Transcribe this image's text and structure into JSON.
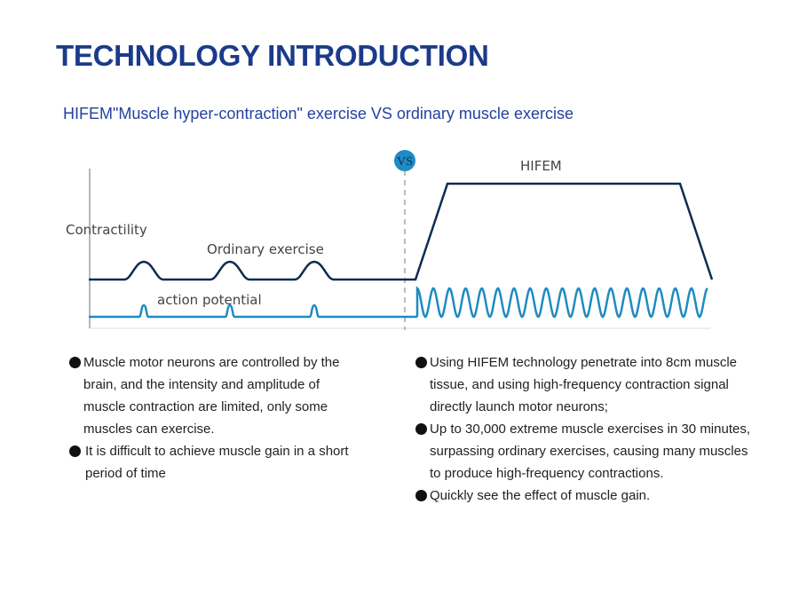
{
  "title": "TECHNOLOGY INTRODUCTION",
  "subtitle": "HIFEM\"Muscle hyper-contraction\" exercise VS ordinary muscle exercise",
  "diagram": {
    "vs_badge": "VS",
    "hifem_label": "HIFEM",
    "contractility_label": "Contractility",
    "ordinary_label": "Ordinary exercise",
    "action_potential_label": "action potential",
    "colors": {
      "contraction": "#0f2b4f",
      "signal": "#1e8bc3",
      "vs": "#1e8bc3",
      "axis": "#888888"
    },
    "ordinary_bumps": 3,
    "hifem_oscillations": 18
  },
  "left_bullets": [
    "Muscle motor neurons are controlled by the brain, and the intensity and amplitude of muscle contraction are limited, only some muscles can exercise.",
    "It is difficult to achieve muscle gain in a short period of time"
  ],
  "right_bullets": [
    "Using HIFEM technology penetrate into 8cm muscle tissue, and using high-frequency contraction signal directly launch motor neurons;",
    "Up to 30,000 extreme muscle exercises in 30 minutes, surpassing ordinary exercises, causing many muscles to produce high-frequency contractions.",
    "Quickly see the effect of muscle gain."
  ]
}
